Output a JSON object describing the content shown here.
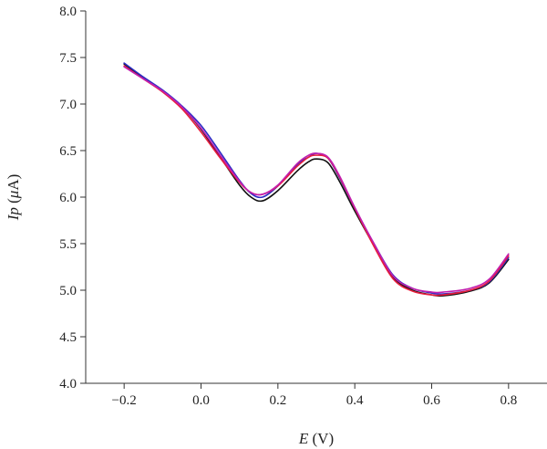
{
  "chart_data": {
    "type": "line",
    "title": "",
    "xlabel": "",
    "ylabel": "",
    "x_label_parts": [
      {
        "text": "E",
        "italic": true
      },
      {
        "text": " (V)",
        "italic": false
      }
    ],
    "y_label_parts": [
      {
        "text": "Ip",
        "italic": true
      },
      {
        "text": " (",
        "italic": false
      },
      {
        "text": "μ",
        "italic": true
      },
      {
        "text": "A)",
        "italic": false
      }
    ],
    "xlim": [
      -0.3,
      0.9
    ],
    "ylim": [
      4.0,
      8.0
    ],
    "xticks": [
      -0.2,
      0.0,
      0.2,
      0.4,
      0.6,
      0.8
    ],
    "xtick_labels": [
      "−0.2",
      "0.0",
      "0.2",
      "0.4",
      "0.6",
      "0.8"
    ],
    "yticks": [
      4.0,
      4.5,
      5.0,
      5.5,
      6.0,
      6.5,
      7.0,
      7.5,
      8.0
    ],
    "ytick_labels": [
      "4.0",
      "4.5",
      "5.0",
      "5.5",
      "6.0",
      "6.5",
      "7.0",
      "7.5",
      "8.0"
    ],
    "grid": false,
    "legend": "none",
    "series": [
      {
        "color": "#111111",
        "points": [
          [
            -0.2,
            7.43
          ],
          [
            -0.15,
            7.28
          ],
          [
            -0.1,
            7.14
          ],
          [
            -0.05,
            6.97
          ],
          [
            0.0,
            6.73
          ],
          [
            0.05,
            6.43
          ],
          [
            0.1,
            6.13
          ],
          [
            0.13,
            6.0
          ],
          [
            0.16,
            5.96
          ],
          [
            0.2,
            6.07
          ],
          [
            0.25,
            6.28
          ],
          [
            0.28,
            6.38
          ],
          [
            0.3,
            6.41
          ],
          [
            0.33,
            6.37
          ],
          [
            0.36,
            6.17
          ],
          [
            0.4,
            5.85
          ],
          [
            0.45,
            5.48
          ],
          [
            0.5,
            5.14
          ],
          [
            0.55,
            5.0
          ],
          [
            0.6,
            4.95
          ],
          [
            0.63,
            4.94
          ],
          [
            0.7,
            4.99
          ],
          [
            0.75,
            5.08
          ],
          [
            0.8,
            5.33
          ]
        ]
      },
      {
        "color": "#2b2bc4",
        "points": [
          [
            -0.2,
            7.44
          ],
          [
            -0.15,
            7.29
          ],
          [
            -0.1,
            7.15
          ],
          [
            -0.05,
            6.98
          ],
          [
            0.0,
            6.77
          ],
          [
            0.05,
            6.48
          ],
          [
            0.1,
            6.18
          ],
          [
            0.13,
            6.04
          ],
          [
            0.16,
            6.0
          ],
          [
            0.2,
            6.12
          ],
          [
            0.25,
            6.35
          ],
          [
            0.28,
            6.43
          ],
          [
            0.3,
            6.47
          ],
          [
            0.33,
            6.42
          ],
          [
            0.36,
            6.21
          ],
          [
            0.4,
            5.88
          ],
          [
            0.45,
            5.5
          ],
          [
            0.5,
            5.16
          ],
          [
            0.55,
            5.02
          ],
          [
            0.6,
            4.97
          ],
          [
            0.63,
            4.96
          ],
          [
            0.7,
            5.0
          ],
          [
            0.75,
            5.09
          ],
          [
            0.8,
            5.35
          ]
        ]
      },
      {
        "color": "#e81c3c",
        "points": [
          [
            -0.2,
            7.41
          ],
          [
            -0.15,
            7.27
          ],
          [
            -0.1,
            7.13
          ],
          [
            -0.05,
            6.95
          ],
          [
            0.0,
            6.7
          ],
          [
            0.05,
            6.42
          ],
          [
            0.1,
            6.16
          ],
          [
            0.13,
            6.05
          ],
          [
            0.16,
            6.03
          ],
          [
            0.2,
            6.12
          ],
          [
            0.25,
            6.33
          ],
          [
            0.28,
            6.43
          ],
          [
            0.3,
            6.45
          ],
          [
            0.33,
            6.42
          ],
          [
            0.36,
            6.22
          ],
          [
            0.4,
            5.88
          ],
          [
            0.45,
            5.47
          ],
          [
            0.5,
            5.12
          ],
          [
            0.55,
            4.99
          ],
          [
            0.6,
            4.95
          ],
          [
            0.63,
            4.95
          ],
          [
            0.7,
            5.0
          ],
          [
            0.75,
            5.1
          ],
          [
            0.8,
            5.37
          ]
        ]
      },
      {
        "color": "#c21fb0",
        "points": [
          [
            -0.2,
            7.4
          ],
          [
            -0.15,
            7.27
          ],
          [
            -0.1,
            7.14
          ],
          [
            -0.05,
            6.97
          ],
          [
            0.0,
            6.74
          ],
          [
            0.05,
            6.45
          ],
          [
            0.1,
            6.17
          ],
          [
            0.13,
            6.05
          ],
          [
            0.16,
            6.03
          ],
          [
            0.2,
            6.13
          ],
          [
            0.25,
            6.36
          ],
          [
            0.28,
            6.45
          ],
          [
            0.3,
            6.47
          ],
          [
            0.33,
            6.43
          ],
          [
            0.36,
            6.23
          ],
          [
            0.4,
            5.89
          ],
          [
            0.45,
            5.5
          ],
          [
            0.5,
            5.15
          ],
          [
            0.55,
            5.02
          ],
          [
            0.6,
            4.98
          ],
          [
            0.63,
            4.98
          ],
          [
            0.7,
            5.02
          ],
          [
            0.75,
            5.12
          ],
          [
            0.8,
            5.39
          ]
        ]
      }
    ]
  }
}
